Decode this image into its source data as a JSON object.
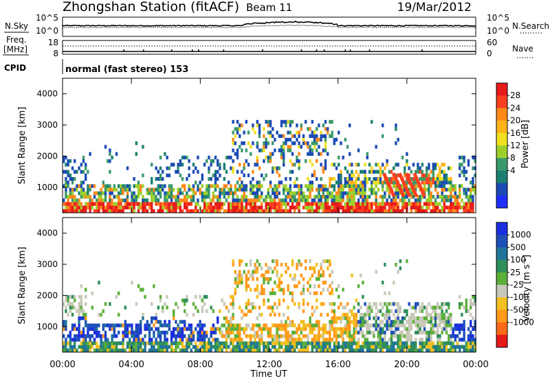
{
  "header": {
    "station": "Zhongshan Station (fitACF)",
    "beam": "Beam 11",
    "date": "19/Mar/2012"
  },
  "nsky_panel": {
    "left_label": "N.Sky",
    "right_label": "N.Search",
    "left_ticks": [
      "10^5",
      "10^0"
    ],
    "right_ticks": [
      "10^5",
      "10^0"
    ]
  },
  "freq_panel": {
    "left_label_lines": [
      "Freq.",
      "[MHz]"
    ],
    "right_label": "Nave",
    "left_ticks": [
      "18",
      "8"
    ],
    "right_ticks": [
      "60",
      "0"
    ]
  },
  "cpid": {
    "label": "CPID",
    "value": "normal (fast stereo) 153"
  },
  "chart_data": [
    {
      "type": "heatmap",
      "name": "power",
      "ylabel": "Slant Range [km]",
      "ylim": [
        180,
        4500
      ],
      "yticks": [
        "4000",
        "3000",
        "2000",
        "1000"
      ],
      "colorbar_label": "Power [dB]",
      "colorbar_ticks": [
        "28",
        "24",
        "20",
        "16",
        "12",
        "8",
        "4"
      ],
      "colorbar_colors": [
        "#e61a1a",
        "#ff3f1f",
        "#ff8a1a",
        "#ffb41a",
        "#f0e020",
        "#9ccf2c",
        "#3b9a6a",
        "#1b8070",
        "#1b4bb4",
        "#1f2fff"
      ],
      "features": [
        {
          "x": [
            0,
            24
          ],
          "y": [
            230,
            480
          ],
          "level": "high"
        },
        {
          "x": [
            0,
            24
          ],
          "y": [
            480,
            1000
          ],
          "level": "medium"
        },
        {
          "x": [
            6,
            16
          ],
          "y": [
            1000,
            2000
          ],
          "level": "low"
        },
        {
          "x": [
            10,
            15.5
          ],
          "y": [
            1800,
            3100
          ],
          "level": "low-medium"
        },
        {
          "x": [
            15.5,
            22.5
          ],
          "y": [
            1000,
            1700
          ],
          "level": "medium"
        },
        {
          "x": [
            18.5,
            21.5
          ],
          "y": [
            600,
            1500
          ],
          "level": "high"
        }
      ]
    },
    {
      "type": "heatmap",
      "name": "velocity",
      "ylabel": "Slant Range [km]",
      "ylim": [
        180,
        4500
      ],
      "yticks": [
        "4000",
        "3000",
        "2000",
        "1000"
      ],
      "colorbar_label": "Velocity [m s",
      "colorbar_label_sup": "-1",
      "colorbar_label_end": "]",
      "colorbar_ticks": [
        "1000",
        "500",
        "100",
        "25",
        "-25",
        "-100",
        "-500",
        "-1000"
      ],
      "colorbar_colors": [
        "#1a2fe0",
        "#1f4fb8",
        "#20749a",
        "#2f8e5a",
        "#5cb03a",
        "#c8c8b8",
        "#f2c020",
        "#ff9a1a",
        "#ff6a1a",
        "#e61a1a"
      ],
      "features": [
        {
          "x": [
            0,
            24
          ],
          "y": [
            230,
            480
          ],
          "level": "mixed"
        },
        {
          "x": [
            0,
            9
          ],
          "y": [
            480,
            1200
          ],
          "level": "positive"
        },
        {
          "x": [
            9,
            17
          ],
          "y": [
            480,
            3000
          ],
          "level": "negative"
        },
        {
          "x": [
            15.5,
            22.5
          ],
          "y": [
            1000,
            1700
          ],
          "level": "near-zero"
        }
      ]
    }
  ],
  "time_axis": {
    "ticks": [
      "00:00",
      "04:00",
      "08:00",
      "12:00",
      "16:00",
      "20:00",
      "00:00"
    ],
    "label": "Time UT"
  }
}
